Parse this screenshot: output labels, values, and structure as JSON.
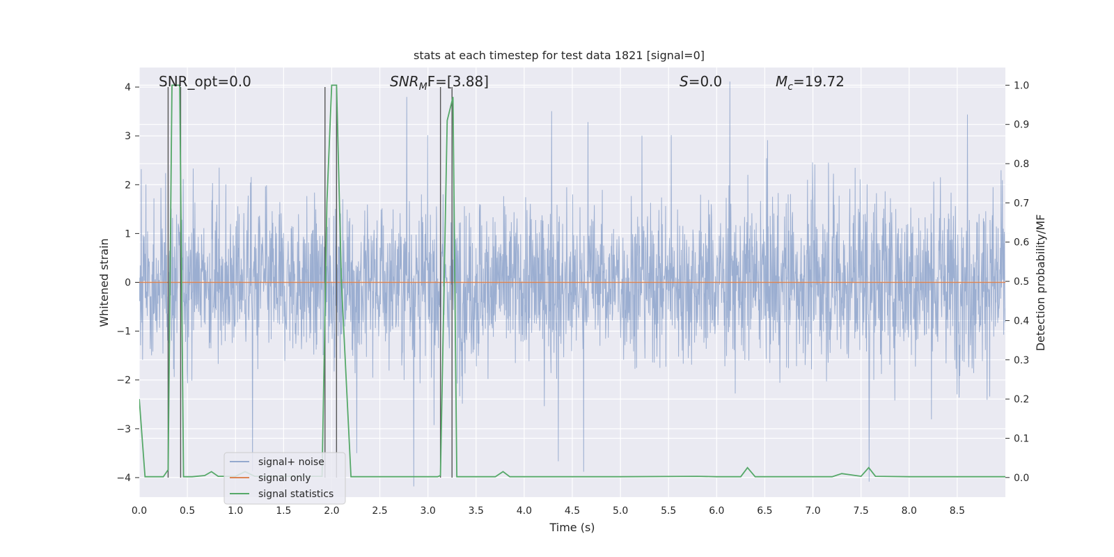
{
  "chart_data": {
    "type": "line",
    "title": "stats at each timestep for test data 1821 [signal=0]",
    "xlabel": "Time (s)",
    "ylabel": "Whitened strain",
    "ylabel_right": "Detection probability/MF",
    "xlim": [
      0.0,
      9.0
    ],
    "ylim": [
      -4.4,
      4.4
    ],
    "ylim_right": [
      -0.05,
      1.045
    ],
    "xticks": [
      "0.0",
      "0.5",
      "1.0",
      "1.5",
      "2.0",
      "2.5",
      "3.0",
      "3.5",
      "4.0",
      "4.5",
      "5.0",
      "5.5",
      "6.0",
      "6.5",
      "7.0",
      "7.5",
      "8.0",
      "8.5"
    ],
    "yticks": [
      "4",
      "3",
      "2",
      "1",
      "0",
      "−1",
      "−2",
      "−3",
      "−4"
    ],
    "yticks_right": [
      "1.0",
      "0.9",
      "0.8",
      "0.7",
      "0.6",
      "0.5",
      "0.4",
      "0.3",
      "0.2",
      "0.1",
      "0.0"
    ],
    "annotations": {
      "snr_opt": "SNR_opt=0.0",
      "snr_mf_main": "SNR",
      "snr_mf_sub": "M",
      "snr_mf_rest": "F=[3.88]",
      "s_main": "S",
      "s_rest": "=0.0",
      "mc_main": "M",
      "mc_sub": "c",
      "mc_rest": "=19.72"
    },
    "grid": true,
    "legend_placement": "lower-left",
    "colors": {
      "noise": "#4c72b0",
      "signal": "#dd8452",
      "stats": "#55a868",
      "marker": "#555555",
      "axes_bg": "#eaeaf2",
      "grid": "#ffffff"
    },
    "series": [
      {
        "name": "signal+ noise",
        "kind": "noise",
        "description_values": "dense noise, envelope approx ±2.2 whitened strain, peaks to about ±3.5",
        "envelope": {
          "x": [
            0.0,
            1.0,
            2.0,
            3.0,
            4.0,
            5.0,
            6.0,
            7.0,
            8.0,
            9.0
          ],
          "upper": [
            2.9,
            3.0,
            2.6,
            3.0,
            2.8,
            2.8,
            2.8,
            3.5,
            3.2,
            3.4
          ],
          "lower": [
            -2.9,
            -2.5,
            -2.6,
            -3.3,
            -3.0,
            -2.7,
            -2.8,
            -3.0,
            -3.1,
            -3.1
          ]
        }
      },
      {
        "name": "signal only",
        "kind": "signal",
        "x": [
          0.0,
          9.0
        ],
        "y": [
          0.0,
          0.0
        ]
      },
      {
        "name": "signal statistics",
        "kind": "stats",
        "axis": "right",
        "x": [
          0.0,
          0.06,
          0.25,
          0.3,
          0.34,
          0.42,
          0.46,
          0.55,
          0.68,
          0.75,
          0.82,
          1.0,
          1.1,
          1.2,
          1.9,
          1.95,
          2.0,
          2.05,
          2.1,
          2.2,
          2.5,
          2.8,
          3.1,
          3.13,
          3.2,
          3.26,
          3.3,
          3.4,
          3.7,
          3.78,
          3.85,
          4.0,
          4.5,
          5.0,
          5.8,
          6.0,
          6.25,
          6.32,
          6.4,
          7.0,
          7.2,
          7.3,
          7.5,
          7.58,
          7.65,
          8.0,
          9.0
        ],
        "y": [
          0.2,
          0.002,
          0.002,
          0.02,
          1.0,
          1.0,
          0.002,
          0.002,
          0.005,
          0.015,
          0.003,
          0.003,
          0.015,
          0.003,
          0.003,
          0.7,
          1.0,
          1.0,
          0.5,
          0.002,
          0.002,
          0.002,
          0.002,
          0.005,
          0.91,
          0.97,
          0.002,
          0.002,
          0.002,
          0.015,
          0.002,
          0.002,
          0.002,
          0.002,
          0.003,
          0.002,
          0.002,
          0.025,
          0.002,
          0.002,
          0.002,
          0.01,
          0.003,
          0.025,
          0.003,
          0.002,
          0.002
        ]
      }
    ],
    "vlines": [
      0.3,
      0.43,
      1.93,
      2.05,
      3.13,
      3.25
    ]
  },
  "legend": {
    "items": [
      "signal+ noise",
      "signal only",
      "signal statistics"
    ]
  }
}
